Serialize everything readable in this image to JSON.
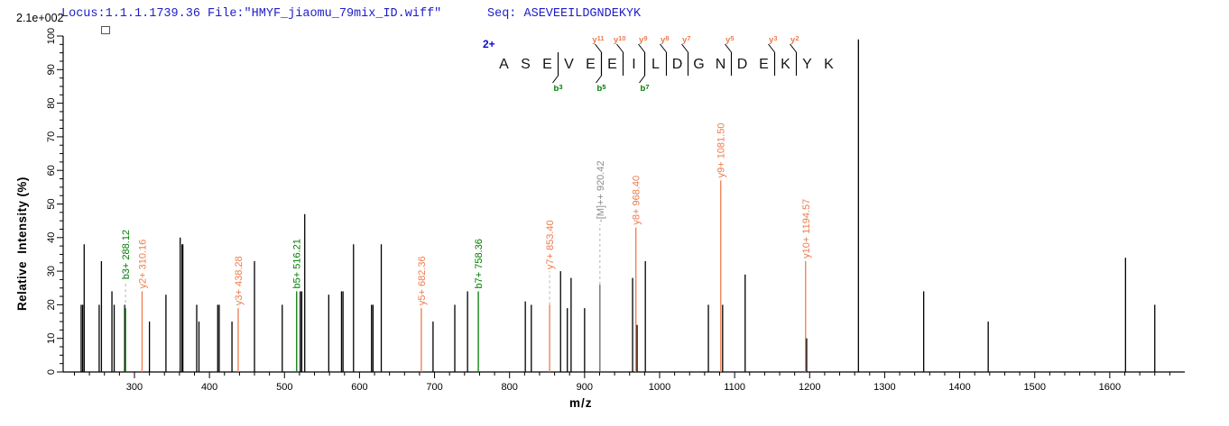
{
  "header": {
    "locus_file": "Locus:1.1.1.1739.36 File:\"HMYF_jiaomu_79mix_ID.wiff\"",
    "seq_label": "Seq: ASEVEEILDGNDEKYK"
  },
  "intensity_scale": "2.1e+002",
  "chart_data": {
    "type": "bar",
    "subtype": "ms2-fragmentation-spectrum",
    "title": "",
    "xlabel": "m/z",
    "ylabel": "Relative  Intensity (%)",
    "xlim": [
      205,
      1700
    ],
    "ylim": [
      0,
      100
    ],
    "x_major_ticks": [
      300,
      400,
      500,
      600,
      700,
      800,
      900,
      1000,
      1100,
      1200,
      1300,
      1400,
      1500,
      1600
    ],
    "x_minor_step": 20,
    "y_major_ticks": [
      0,
      10,
      20,
      30,
      40,
      50,
      60,
      70,
      80,
      90,
      100
    ],
    "y_minor_step": 2.5,
    "grid": "off",
    "colors": {
      "y_ion": "#ee7b4c",
      "b_ion": "#007c00",
      "precursor": "#8c8c8c",
      "peak": "#000000",
      "charge_blue": "#0a0ad2",
      "dash": "#b5b5b5"
    },
    "sequence_display": {
      "charge": "2+",
      "residues": [
        "A",
        "S",
        "E",
        "V",
        "E",
        "E",
        "I",
        "L",
        "D",
        "G",
        "N",
        "D",
        "E",
        "K",
        "Y",
        "K"
      ],
      "y_ion_marks": [
        {
          "label": "y",
          "num": "11",
          "bond": 5
        },
        {
          "label": "y",
          "num": "10",
          "bond": 6
        },
        {
          "label": "y",
          "num": "9",
          "bond": 7
        },
        {
          "label": "y",
          "num": "8",
          "bond": 8
        },
        {
          "label": "y",
          "num": "7",
          "bond": 9
        },
        {
          "label": "y",
          "num": "5",
          "bond": 11
        },
        {
          "label": "y",
          "num": "3",
          "bond": 13
        },
        {
          "label": "y",
          "num": "2",
          "bond": 14
        }
      ],
      "b_ion_marks": [
        {
          "label": "b",
          "num": "3",
          "bond": 3
        },
        {
          "label": "b",
          "num": "5",
          "bond": 5
        },
        {
          "label": "b",
          "num": "7",
          "bond": 7
        }
      ]
    },
    "peaks": [
      {
        "mz": 229,
        "intensity": 20
      },
      {
        "mz": 231,
        "intensity": 20
      },
      {
        "mz": 233,
        "intensity": 38
      },
      {
        "mz": 253,
        "intensity": 20
      },
      {
        "mz": 256,
        "intensity": 33
      },
      {
        "mz": 270,
        "intensity": 24
      },
      {
        "mz": 273,
        "intensity": 20
      },
      {
        "mz": 287,
        "intensity": 20
      },
      {
        "mz": 288.12,
        "intensity": 19,
        "type": "b",
        "label": "b3+ 288.12",
        "dash_to": 27
      },
      {
        "mz": 310.16,
        "intensity": 24,
        "type": "y",
        "label": "y2+ 310.16"
      },
      {
        "mz": 320,
        "intensity": 15
      },
      {
        "mz": 342,
        "intensity": 23
      },
      {
        "mz": 361,
        "intensity": 40
      },
      {
        "mz": 364,
        "intensity": 38,
        "w": 2.2
      },
      {
        "mz": 383,
        "intensity": 20
      },
      {
        "mz": 386,
        "intensity": 15
      },
      {
        "mz": 411,
        "intensity": 20
      },
      {
        "mz": 413,
        "intensity": 20
      },
      {
        "mz": 430,
        "intensity": 15
      },
      {
        "mz": 438.28,
        "intensity": 19,
        "type": "y",
        "label": "y3+ 438.28"
      },
      {
        "mz": 460,
        "intensity": 33
      },
      {
        "mz": 497,
        "intensity": 20
      },
      {
        "mz": 516.21,
        "intensity": 24,
        "type": "b",
        "label": "b5+ 516.21"
      },
      {
        "mz": 521,
        "intensity": 24
      },
      {
        "mz": 523,
        "intensity": 24
      },
      {
        "mz": 527,
        "intensity": 47
      },
      {
        "mz": 559,
        "intensity": 23
      },
      {
        "mz": 576,
        "intensity": 24
      },
      {
        "mz": 578,
        "intensity": 24
      },
      {
        "mz": 592,
        "intensity": 38
      },
      {
        "mz": 616,
        "intensity": 20
      },
      {
        "mz": 618,
        "intensity": 20
      },
      {
        "mz": 629,
        "intensity": 38
      },
      {
        "mz": 682.36,
        "intensity": 19,
        "type": "y",
        "label": "y5+ 682.36"
      },
      {
        "mz": 698,
        "intensity": 15
      },
      {
        "mz": 727,
        "intensity": 20
      },
      {
        "mz": 744,
        "intensity": 24
      },
      {
        "mz": 758.36,
        "intensity": 24,
        "type": "b",
        "label": "b7+ 758.36"
      },
      {
        "mz": 821,
        "intensity": 21
      },
      {
        "mz": 829,
        "intensity": 20
      },
      {
        "mz": 853.4,
        "intensity": 20,
        "type": "y",
        "label": "y7+ 853.40",
        "dash_to": 30
      },
      {
        "mz": 868,
        "intensity": 30
      },
      {
        "mz": 877,
        "intensity": 19
      },
      {
        "mz": 882,
        "intensity": 28
      },
      {
        "mz": 900,
        "intensity": 19
      },
      {
        "mz": 920.42,
        "intensity": 26,
        "type": "precursor",
        "label": "-[M]++ 920.42",
        "dash_to": 44
      },
      {
        "mz": 964,
        "intensity": 28
      },
      {
        "mz": 968.4,
        "intensity": 43,
        "type": "y",
        "label": "y8+ 968.40"
      },
      {
        "mz": 970,
        "intensity": 14
      },
      {
        "mz": 981,
        "intensity": 33
      },
      {
        "mz": 1065,
        "intensity": 20
      },
      {
        "mz": 1081.5,
        "intensity": 57,
        "type": "y",
        "label": "y9+ 1081.50"
      },
      {
        "mz": 1084,
        "intensity": 20
      },
      {
        "mz": 1114,
        "intensity": 29
      },
      {
        "mz": 1194.57,
        "intensity": 33,
        "type": "y",
        "label": "y10+ 1194.57"
      },
      {
        "mz": 1196,
        "intensity": 10
      },
      {
        "mz": 1265,
        "intensity": 99
      },
      {
        "mz": 1352,
        "intensity": 24
      },
      {
        "mz": 1438,
        "intensity": 15
      },
      {
        "mz": 1621,
        "intensity": 34
      },
      {
        "mz": 1660,
        "intensity": 20
      }
    ]
  }
}
